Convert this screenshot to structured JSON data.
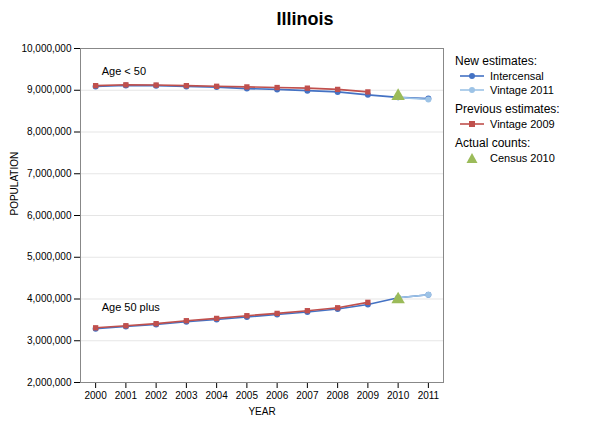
{
  "chart_data": {
    "type": "line",
    "title": "Illinois",
    "xlabel": "YEAR",
    "ylabel": "POPULATION",
    "x": [
      2000,
      2001,
      2002,
      2003,
      2004,
      2005,
      2006,
      2007,
      2008,
      2009,
      2010,
      2011
    ],
    "series": [
      {
        "name": "Intercensal",
        "color": "#4472c4",
        "marker": "circle",
        "type": "line",
        "values": [
          9090000,
          9115000,
          9110000,
          9090000,
          9075000,
          9040000,
          9020000,
          8990000,
          8960000,
          8890000,
          8830000,
          8800000
        ]
      },
      {
        "name": "Vintage 2011",
        "color": "#9dc3e6",
        "marker": "circle",
        "type": "line",
        "values": [
          null,
          null,
          null,
          null,
          null,
          null,
          null,
          null,
          null,
          null,
          8830000,
          8780000
        ]
      },
      {
        "name": "Vintage 2009",
        "color": "#c0504d",
        "marker": "square",
        "type": "line",
        "values": [
          9110000,
          9130000,
          9125000,
          9110000,
          9095000,
          9080000,
          9065000,
          9050000,
          9020000,
          8960000,
          null,
          null
        ]
      },
      {
        "name": "Census 2010",
        "color": "#9bbb59",
        "marker": "triangle",
        "type": "scatter",
        "values": [
          null,
          null,
          null,
          null,
          null,
          null,
          null,
          null,
          null,
          null,
          8860000,
          null
        ]
      },
      {
        "name": "Intercensal",
        "color": "#4472c4",
        "marker": "circle",
        "type": "line",
        "values": [
          3290000,
          3340000,
          3390000,
          3455000,
          3510000,
          3570000,
          3630000,
          3690000,
          3760000,
          3870000,
          4030000,
          4100000
        ]
      },
      {
        "name": "Vintage 2011",
        "color": "#9dc3e6",
        "marker": "circle",
        "type": "line",
        "values": [
          null,
          null,
          null,
          null,
          null,
          null,
          null,
          null,
          null,
          null,
          4030000,
          4100000
        ]
      },
      {
        "name": "Vintage 2009",
        "color": "#c0504d",
        "marker": "square",
        "type": "line",
        "values": [
          3310000,
          3360000,
          3410000,
          3480000,
          3535000,
          3600000,
          3655000,
          3720000,
          3790000,
          3920000,
          null,
          null
        ]
      },
      {
        "name": "Census 2010",
        "color": "#9bbb59",
        "marker": "triangle",
        "type": "scatter",
        "values": [
          null,
          null,
          null,
          null,
          null,
          null,
          null,
          null,
          null,
          null,
          3990000,
          null
        ]
      }
    ],
    "legend_groups": [
      {
        "title": "New estimates:",
        "series": [
          "Intercensal",
          "Vintage 2011"
        ]
      },
      {
        "title": "Previous estimates:",
        "series": [
          "Vintage 2009"
        ]
      },
      {
        "title": "Actual counts:",
        "series": [
          "Census 2010"
        ]
      }
    ],
    "annotations": [
      {
        "text": "Age < 50",
        "x": 2000.2,
        "y": 9360000
      },
      {
        "text": "Age 50 plus",
        "x": 2000.2,
        "y": 3720000
      }
    ],
    "xlim": [
      1999.5,
      2011.5
    ],
    "xticks": [
      2000,
      2001,
      2002,
      2003,
      2004,
      2005,
      2006,
      2007,
      2008,
      2009,
      2010,
      2011
    ],
    "ylim": [
      2000000,
      10000000
    ],
    "yticks": [
      {
        "value": 2000000,
        "label": "2,000,000"
      },
      {
        "value": 3000000,
        "label": "3,000,000"
      },
      {
        "value": 4000000,
        "label": "4,000,000"
      },
      {
        "value": 5000000,
        "label": "5,000,000"
      },
      {
        "value": 6000000,
        "label": "6,000,000"
      },
      {
        "value": 7000000,
        "label": "7,000,000"
      },
      {
        "value": 8000000,
        "label": "8,000,000"
      },
      {
        "value": 9000000,
        "label": "9,000,000"
      },
      {
        "value": 10000000,
        "label": "10,000,000"
      }
    ],
    "grid": "y",
    "legend": "right"
  }
}
